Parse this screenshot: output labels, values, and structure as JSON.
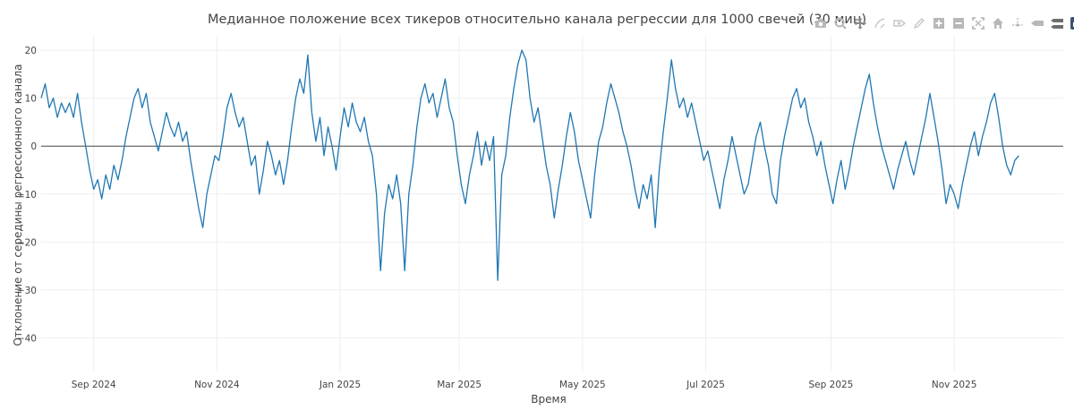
{
  "chart_data": {
    "type": "line",
    "title": "Медианное положение всех тикеров относительно канала регрессии для 1000 свечей (30 мин)",
    "xlabel": "Время",
    "ylabel": "Отклонение от середины регрессионного канала",
    "xlim": [
      "2024-08-06",
      "2025-12-25"
    ],
    "ylim": [
      -47,
      23
    ],
    "yticks": [
      20,
      10,
      0,
      -10,
      -20,
      -30,
      -40
    ],
    "xticks": [
      {
        "date": "2024-09-01",
        "label": "Sep 2024"
      },
      {
        "date": "2024-11-01",
        "label": "Nov 2024"
      },
      {
        "date": "2025-01-01",
        "label": "Jan 2025"
      },
      {
        "date": "2025-03-01",
        "label": "Mar 2025"
      },
      {
        "date": "2025-05-01",
        "label": "May 2025"
      },
      {
        "date": "2025-07-01",
        "label": "Jul 2025"
      },
      {
        "date": "2025-09-01",
        "label": "Sep 2025"
      },
      {
        "date": "2025-11-01",
        "label": "Nov 2025"
      }
    ],
    "grid": true,
    "zero_line": true,
    "series": [
      {
        "color": "#1f77b4",
        "points": [
          [
            "2024-08-06",
            10
          ],
          [
            "2024-08-08",
            13
          ],
          [
            "2024-08-10",
            8
          ],
          [
            "2024-08-12",
            10
          ],
          [
            "2024-08-14",
            6
          ],
          [
            "2024-08-16",
            9
          ],
          [
            "2024-08-18",
            7
          ],
          [
            "2024-08-20",
            9
          ],
          [
            "2024-08-22",
            6
          ],
          [
            "2024-08-24",
            11
          ],
          [
            "2024-08-26",
            5
          ],
          [
            "2024-08-28",
            0
          ],
          [
            "2024-08-30",
            -5
          ],
          [
            "2024-09-01",
            -9
          ],
          [
            "2024-09-03",
            -7
          ],
          [
            "2024-09-05",
            -11
          ],
          [
            "2024-09-07",
            -6
          ],
          [
            "2024-09-09",
            -9
          ],
          [
            "2024-09-11",
            -4
          ],
          [
            "2024-09-13",
            -7
          ],
          [
            "2024-09-15",
            -3
          ],
          [
            "2024-09-17",
            2
          ],
          [
            "2024-09-19",
            6
          ],
          [
            "2024-09-21",
            10
          ],
          [
            "2024-09-23",
            12
          ],
          [
            "2024-09-25",
            8
          ],
          [
            "2024-09-27",
            11
          ],
          [
            "2024-09-29",
            5
          ],
          [
            "2024-10-01",
            2
          ],
          [
            "2024-10-03",
            -1
          ],
          [
            "2024-10-05",
            3
          ],
          [
            "2024-10-07",
            7
          ],
          [
            "2024-10-09",
            4
          ],
          [
            "2024-10-11",
            2
          ],
          [
            "2024-10-13",
            5
          ],
          [
            "2024-10-15",
            1
          ],
          [
            "2024-10-17",
            3
          ],
          [
            "2024-10-19",
            -3
          ],
          [
            "2024-10-21",
            -8
          ],
          [
            "2024-10-23",
            -13
          ],
          [
            "2024-10-25",
            -17
          ],
          [
            "2024-10-27",
            -10
          ],
          [
            "2024-10-29",
            -6
          ],
          [
            "2024-10-31",
            -2
          ],
          [
            "2024-11-02",
            -3
          ],
          [
            "2024-11-04",
            2
          ],
          [
            "2024-11-06",
            8
          ],
          [
            "2024-11-08",
            11
          ],
          [
            "2024-11-10",
            7
          ],
          [
            "2024-11-12",
            4
          ],
          [
            "2024-11-14",
            6
          ],
          [
            "2024-11-16",
            1
          ],
          [
            "2024-11-18",
            -4
          ],
          [
            "2024-11-20",
            -2
          ],
          [
            "2024-11-22",
            -10
          ],
          [
            "2024-11-24",
            -5
          ],
          [
            "2024-11-26",
            1
          ],
          [
            "2024-11-28",
            -2
          ],
          [
            "2024-11-30",
            -6
          ],
          [
            "2024-12-02",
            -3
          ],
          [
            "2024-12-04",
            -8
          ],
          [
            "2024-12-06",
            -3
          ],
          [
            "2024-12-08",
            4
          ],
          [
            "2024-12-10",
            10
          ],
          [
            "2024-12-12",
            14
          ],
          [
            "2024-12-14",
            11
          ],
          [
            "2024-12-16",
            19
          ],
          [
            "2024-12-18",
            7
          ],
          [
            "2024-12-20",
            1
          ],
          [
            "2024-12-22",
            6
          ],
          [
            "2024-12-24",
            -2
          ],
          [
            "2024-12-26",
            4
          ],
          [
            "2024-12-28",
            0
          ],
          [
            "2024-12-30",
            -5
          ],
          [
            "2025-01-01",
            2
          ],
          [
            "2025-01-03",
            8
          ],
          [
            "2025-01-05",
            4
          ],
          [
            "2025-01-07",
            9
          ],
          [
            "2025-01-09",
            5
          ],
          [
            "2025-01-11",
            3
          ],
          [
            "2025-01-13",
            6
          ],
          [
            "2025-01-15",
            1
          ],
          [
            "2025-01-17",
            -2
          ],
          [
            "2025-01-19",
            -10
          ],
          [
            "2025-01-21",
            -26
          ],
          [
            "2025-01-23",
            -14
          ],
          [
            "2025-01-25",
            -8
          ],
          [
            "2025-01-27",
            -11
          ],
          [
            "2025-01-29",
            -6
          ],
          [
            "2025-01-31",
            -12
          ],
          [
            "2025-02-02",
            -26
          ],
          [
            "2025-02-04",
            -10
          ],
          [
            "2025-02-06",
            -4
          ],
          [
            "2025-02-08",
            4
          ],
          [
            "2025-02-10",
            10
          ],
          [
            "2025-02-12",
            13
          ],
          [
            "2025-02-14",
            9
          ],
          [
            "2025-02-16",
            11
          ],
          [
            "2025-02-18",
            6
          ],
          [
            "2025-02-20",
            10
          ],
          [
            "2025-02-22",
            14
          ],
          [
            "2025-02-24",
            8
          ],
          [
            "2025-02-26",
            5
          ],
          [
            "2025-02-28",
            -2
          ],
          [
            "2025-03-02",
            -8
          ],
          [
            "2025-03-04",
            -12
          ],
          [
            "2025-03-06",
            -6
          ],
          [
            "2025-03-08",
            -2
          ],
          [
            "2025-03-10",
            3
          ],
          [
            "2025-03-12",
            -4
          ],
          [
            "2025-03-14",
            1
          ],
          [
            "2025-03-16",
            -3
          ],
          [
            "2025-03-18",
            2
          ],
          [
            "2025-03-20",
            -28
          ],
          [
            "2025-03-22",
            -6
          ],
          [
            "2025-03-24",
            -2
          ],
          [
            "2025-03-26",
            6
          ],
          [
            "2025-03-28",
            12
          ],
          [
            "2025-03-30",
            17
          ],
          [
            "2025-04-01",
            20
          ],
          [
            "2025-04-03",
            18
          ],
          [
            "2025-04-05",
            10
          ],
          [
            "2025-04-07",
            5
          ],
          [
            "2025-04-09",
            8
          ],
          [
            "2025-04-11",
            2
          ],
          [
            "2025-04-13",
            -4
          ],
          [
            "2025-04-15",
            -8
          ],
          [
            "2025-04-17",
            -15
          ],
          [
            "2025-04-19",
            -9
          ],
          [
            "2025-04-21",
            -4
          ],
          [
            "2025-04-23",
            2
          ],
          [
            "2025-04-25",
            7
          ],
          [
            "2025-04-27",
            3
          ],
          [
            "2025-04-29",
            -3
          ],
          [
            "2025-05-01",
            -7
          ],
          [
            "2025-05-03",
            -11
          ],
          [
            "2025-05-05",
            -15
          ],
          [
            "2025-05-07",
            -6
          ],
          [
            "2025-05-09",
            1
          ],
          [
            "2025-05-11",
            4
          ],
          [
            "2025-05-13",
            9
          ],
          [
            "2025-05-15",
            13
          ],
          [
            "2025-05-17",
            10
          ],
          [
            "2025-05-19",
            7
          ],
          [
            "2025-05-21",
            3
          ],
          [
            "2025-05-23",
            0
          ],
          [
            "2025-05-25",
            -4
          ],
          [
            "2025-05-27",
            -9
          ],
          [
            "2025-05-29",
            -13
          ],
          [
            "2025-05-31",
            -8
          ],
          [
            "2025-06-02",
            -11
          ],
          [
            "2025-06-04",
            -6
          ],
          [
            "2025-06-06",
            -17
          ],
          [
            "2025-06-08",
            -5
          ],
          [
            "2025-06-10",
            3
          ],
          [
            "2025-06-12",
            10
          ],
          [
            "2025-06-14",
            18
          ],
          [
            "2025-06-16",
            12
          ],
          [
            "2025-06-18",
            8
          ],
          [
            "2025-06-20",
            10
          ],
          [
            "2025-06-22",
            6
          ],
          [
            "2025-06-24",
            9
          ],
          [
            "2025-06-26",
            5
          ],
          [
            "2025-06-28",
            1
          ],
          [
            "2025-06-30",
            -3
          ],
          [
            "2025-07-02",
            -1
          ],
          [
            "2025-07-04",
            -5
          ],
          [
            "2025-07-06",
            -9
          ],
          [
            "2025-07-08",
            -13
          ],
          [
            "2025-07-10",
            -7
          ],
          [
            "2025-07-12",
            -3
          ],
          [
            "2025-07-14",
            2
          ],
          [
            "2025-07-16",
            -2
          ],
          [
            "2025-07-18",
            -6
          ],
          [
            "2025-07-20",
            -10
          ],
          [
            "2025-07-22",
            -8
          ],
          [
            "2025-07-24",
            -3
          ],
          [
            "2025-07-26",
            2
          ],
          [
            "2025-07-28",
            5
          ],
          [
            "2025-07-30",
            0
          ],
          [
            "2025-08-01",
            -4
          ],
          [
            "2025-08-03",
            -10
          ],
          [
            "2025-08-05",
            -12
          ],
          [
            "2025-08-07",
            -3
          ],
          [
            "2025-08-09",
            2
          ],
          [
            "2025-08-11",
            6
          ],
          [
            "2025-08-13",
            10
          ],
          [
            "2025-08-15",
            12
          ],
          [
            "2025-08-17",
            8
          ],
          [
            "2025-08-19",
            10
          ],
          [
            "2025-08-21",
            5
          ],
          [
            "2025-08-23",
            2
          ],
          [
            "2025-08-25",
            -2
          ],
          [
            "2025-08-27",
            1
          ],
          [
            "2025-08-29",
            -4
          ],
          [
            "2025-08-31",
            -8
          ],
          [
            "2025-09-02",
            -12
          ],
          [
            "2025-09-04",
            -7
          ],
          [
            "2025-09-06",
            -3
          ],
          [
            "2025-09-08",
            -9
          ],
          [
            "2025-09-10",
            -5
          ],
          [
            "2025-09-12",
            0
          ],
          [
            "2025-09-14",
            4
          ],
          [
            "2025-09-16",
            8
          ],
          [
            "2025-09-18",
            12
          ],
          [
            "2025-09-20",
            15
          ],
          [
            "2025-09-22",
            9
          ],
          [
            "2025-09-24",
            4
          ],
          [
            "2025-09-26",
            0
          ],
          [
            "2025-09-28",
            -3
          ],
          [
            "2025-09-30",
            -6
          ],
          [
            "2025-10-02",
            -9
          ],
          [
            "2025-10-04",
            -5
          ],
          [
            "2025-10-06",
            -2
          ],
          [
            "2025-10-08",
            1
          ],
          [
            "2025-10-10",
            -3
          ],
          [
            "2025-10-12",
            -6
          ],
          [
            "2025-10-14",
            -2
          ],
          [
            "2025-10-16",
            2
          ],
          [
            "2025-10-18",
            6
          ],
          [
            "2025-10-20",
            11
          ],
          [
            "2025-10-22",
            6
          ],
          [
            "2025-10-24",
            1
          ],
          [
            "2025-10-26",
            -5
          ],
          [
            "2025-10-28",
            -12
          ],
          [
            "2025-10-30",
            -8
          ],
          [
            "2025-11-01",
            -10
          ],
          [
            "2025-11-03",
            -13
          ],
          [
            "2025-11-05",
            -8
          ],
          [
            "2025-11-07",
            -4
          ],
          [
            "2025-11-09",
            0
          ],
          [
            "2025-11-11",
            3
          ],
          [
            "2025-11-13",
            -2
          ],
          [
            "2025-11-15",
            2
          ],
          [
            "2025-11-17",
            5
          ],
          [
            "2025-11-19",
            9
          ],
          [
            "2025-11-21",
            11
          ],
          [
            "2025-11-23",
            6
          ],
          [
            "2025-11-25",
            0
          ],
          [
            "2025-11-27",
            -4
          ],
          [
            "2025-11-29",
            -6
          ],
          [
            "2025-12-01",
            -3
          ],
          [
            "2025-12-03",
            -2
          ]
        ]
      }
    ]
  },
  "modebar": {
    "buttons": [
      {
        "icon": "camera-icon",
        "title": "Download plot as a png"
      },
      {
        "icon": "zoom-icon",
        "title": "Zoom"
      },
      {
        "icon": "pan-icon",
        "title": "Pan"
      },
      {
        "icon": "box-select-icon",
        "title": "Box Select"
      },
      {
        "icon": "lasso-select-icon",
        "title": "Lasso Select"
      },
      {
        "icon": "draw-icon",
        "title": "Draw"
      },
      {
        "icon": "zoom-in-icon",
        "title": "Zoom in"
      },
      {
        "icon": "zoom-out-icon",
        "title": "Zoom out"
      },
      {
        "icon": "autoscale-icon",
        "title": "Autoscale"
      },
      {
        "icon": "reset-axes-icon",
        "title": "Reset axes"
      },
      {
        "icon": "spike-lines-icon",
        "title": "Toggle Spike Lines"
      },
      {
        "icon": "hover-closest-icon",
        "title": "Show closest data on hover"
      },
      {
        "icon": "hover-compare-icon",
        "title": "Compare data on hover"
      },
      {
        "icon": "plotly-logo-icon",
        "title": "Produced with Plotly"
      }
    ]
  }
}
